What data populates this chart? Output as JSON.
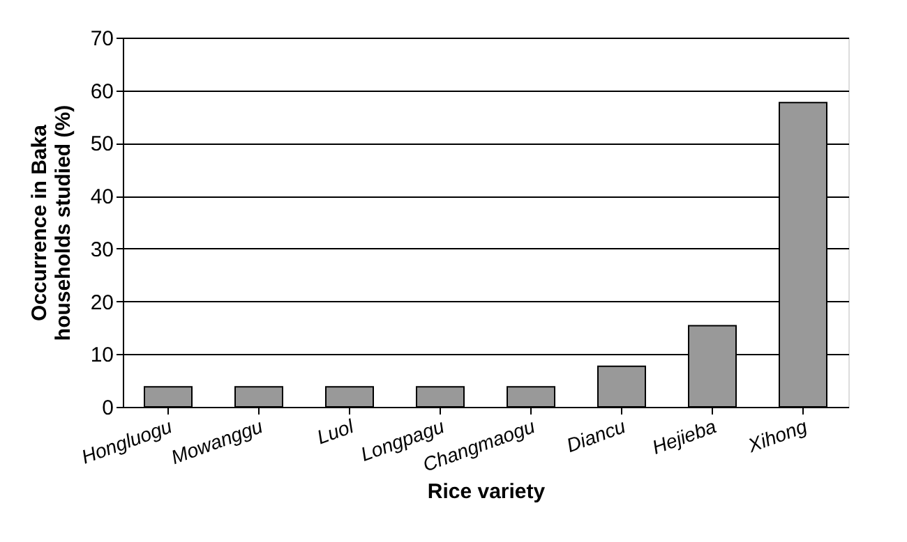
{
  "chart_data": {
    "type": "bar",
    "xlabel": "Rice variety",
    "ylabel": "Occurrence in Baka\nhouseholds studied (%)",
    "categories": [
      "Hongluogu",
      "Mowanggu",
      "Luol",
      "Longpagu",
      "Changmaogu",
      "Diancu",
      "Hejieba",
      "Xihong"
    ],
    "values": [
      3.8,
      3.8,
      3.8,
      3.8,
      3.8,
      7.7,
      15.4,
      57.7
    ],
    "color": "#999999",
    "ylim": [
      0,
      70
    ],
    "yticks": [
      0,
      10,
      20,
      30,
      40,
      50,
      60,
      70
    ],
    "grid": "y"
  }
}
